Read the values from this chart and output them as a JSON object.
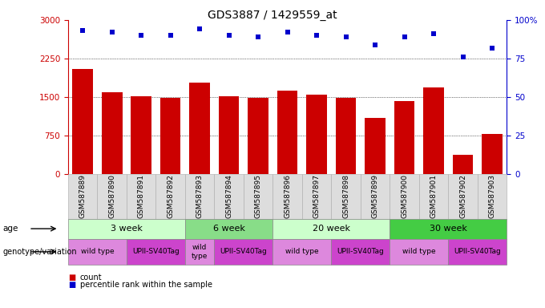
{
  "title": "GDS3887 / 1429559_at",
  "samples": [
    "GSM587889",
    "GSM587890",
    "GSM587891",
    "GSM587892",
    "GSM587893",
    "GSM587894",
    "GSM587895",
    "GSM587896",
    "GSM587897",
    "GSM587898",
    "GSM587899",
    "GSM587900",
    "GSM587901",
    "GSM587902",
    "GSM587903"
  ],
  "counts": [
    2050,
    1600,
    1520,
    1480,
    1780,
    1520,
    1480,
    1620,
    1540,
    1480,
    1100,
    1420,
    1680,
    380,
    780
  ],
  "percentile_ranks": [
    93,
    92,
    90,
    90,
    94,
    90,
    89,
    92,
    90,
    89,
    84,
    89,
    91,
    76,
    82
  ],
  "bar_color": "#cc0000",
  "dot_color": "#0000cc",
  "left_axis_color": "#cc0000",
  "right_axis_color": "#0000cc",
  "ylim_left": [
    0,
    3000
  ],
  "ylim_right": [
    0,
    100
  ],
  "left_yticks": [
    0,
    750,
    1500,
    2250,
    3000
  ],
  "right_yticks": [
    0,
    25,
    50,
    75,
    100
  ],
  "right_yticklabels": [
    "0",
    "25",
    "50",
    "75",
    "100%"
  ],
  "age_groups": [
    {
      "label": "3 week",
      "start": 0,
      "end": 4,
      "color": "#ccffcc"
    },
    {
      "label": "6 week",
      "start": 4,
      "end": 7,
      "color": "#88dd88"
    },
    {
      "label": "20 week",
      "start": 7,
      "end": 11,
      "color": "#ccffcc"
    },
    {
      "label": "30 week",
      "start": 11,
      "end": 15,
      "color": "#44cc44"
    }
  ],
  "genotype_groups": [
    {
      "label": "wild type",
      "start": 0,
      "end": 2,
      "color": "#dd88dd"
    },
    {
      "label": "UPII-SV40Tag",
      "start": 2,
      "end": 4,
      "color": "#cc44cc"
    },
    {
      "label": "wild\ntype",
      "start": 4,
      "end": 5,
      "color": "#dd88dd"
    },
    {
      "label": "UPII-SV40Tag",
      "start": 5,
      "end": 7,
      "color": "#cc44cc"
    },
    {
      "label": "wild type",
      "start": 7,
      "end": 9,
      "color": "#dd88dd"
    },
    {
      "label": "UPII-SV40Tag",
      "start": 9,
      "end": 11,
      "color": "#cc44cc"
    },
    {
      "label": "wild type",
      "start": 11,
      "end": 13,
      "color": "#dd88dd"
    },
    {
      "label": "UPII-SV40Tag",
      "start": 13,
      "end": 15,
      "color": "#cc44cc"
    }
  ],
  "legend_items": [
    {
      "label": "count",
      "color": "#cc0000"
    },
    {
      "label": "percentile rank within the sample",
      "color": "#0000cc"
    }
  ],
  "background_color": "#ffffff",
  "tick_label_bg": "#dddddd",
  "title_fontsize": 10,
  "tick_fontsize": 6.5,
  "bar_width": 0.7
}
